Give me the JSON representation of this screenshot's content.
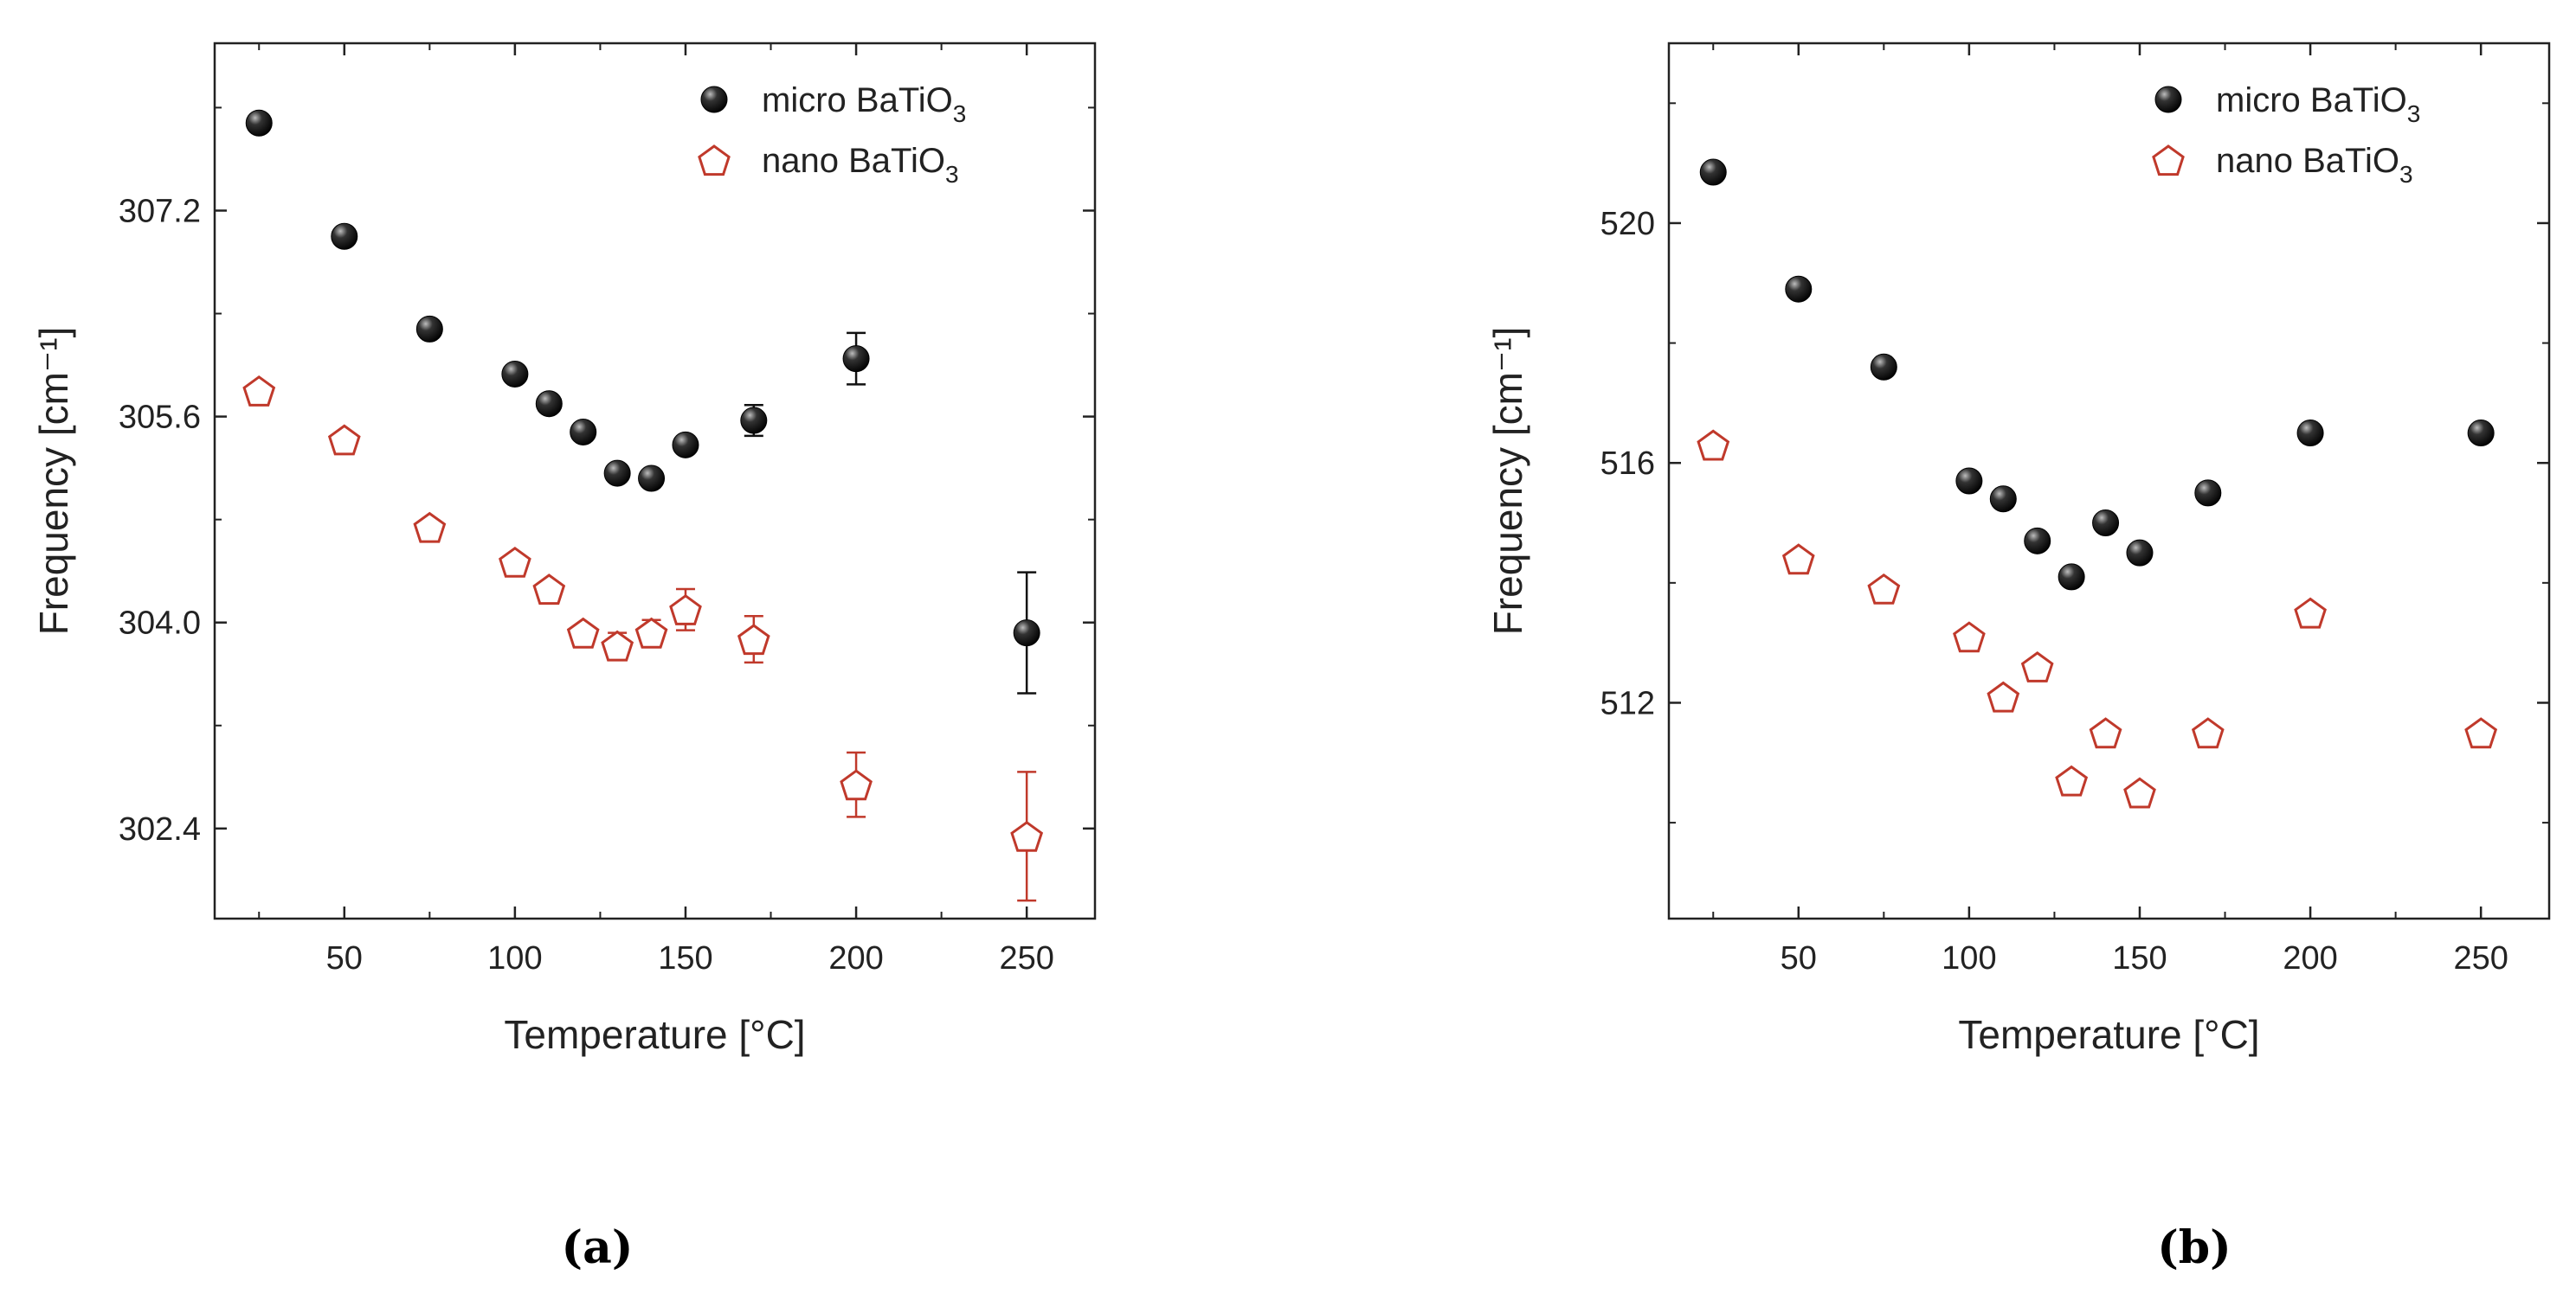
{
  "chart_data": [
    {
      "type": "scatter",
      "panel_label": "(a)",
      "xlabel": "Temperature [°C]",
      "ylabel": "Frequency [cm⁻¹]",
      "xlim": [
        12,
        270
      ],
      "ylim": [
        301.7,
        308.5
      ],
      "xticks": [
        50,
        100,
        150,
        200,
        250
      ],
      "yticks": [
        302.4,
        304.0,
        305.6,
        307.2
      ],
      "ytick_labels": [
        "302.4",
        "304.0",
        "305.6",
        "307.2"
      ],
      "legend_position": "top-right",
      "series": [
        {
          "name": "micro BaTiO3",
          "legend_label": "micro BaTiO",
          "legend_sub": "3",
          "marker": "filled-sphere",
          "color": "#111111",
          "x": [
            25,
            50,
            75,
            100,
            110,
            120,
            130,
            140,
            150,
            170,
            200,
            250
          ],
          "y": [
            307.88,
            307.0,
            306.28,
            305.93,
            305.7,
            305.48,
            305.16,
            305.12,
            305.38,
            305.57,
            306.05,
            303.92
          ],
          "err": [
            0.0,
            0.0,
            0.0,
            0.0,
            0.0,
            0.0,
            0.0,
            0.0,
            0.0,
            0.12,
            0.2,
            0.47
          ]
        },
        {
          "name": "nano BaTiO3",
          "legend_label": "nano BaTiO",
          "legend_sub": "3",
          "marker": "open-pentagon",
          "color": "#c0392b",
          "x": [
            25,
            50,
            75,
            100,
            110,
            120,
            130,
            140,
            150,
            170,
            200,
            250
          ],
          "y": [
            305.8,
            305.42,
            304.74,
            304.47,
            304.26,
            303.92,
            303.82,
            303.92,
            304.1,
            303.87,
            302.74,
            302.34
          ],
          "err": [
            0.0,
            0.0,
            0.0,
            0.0,
            0.0,
            0.0,
            0.1,
            0.1,
            0.16,
            0.18,
            0.25,
            0.5
          ]
        }
      ]
    },
    {
      "type": "scatter",
      "panel_label": "(b)",
      "xlabel": "Temperature [°C]",
      "ylabel": "Frequency [cm⁻¹]",
      "xlim": [
        12,
        270
      ],
      "ylim": [
        508.4,
        523.0
      ],
      "xticks": [
        50,
        100,
        150,
        200,
        250
      ],
      "yticks": [
        512,
        516,
        520
      ],
      "ytick_labels": [
        "512",
        "516",
        "520"
      ],
      "legend_position": "top-right",
      "series": [
        {
          "name": "micro BaTiO3",
          "legend_label": "micro BaTiO",
          "legend_sub": "3",
          "marker": "filled-sphere",
          "color": "#111111",
          "x": [
            25,
            50,
            75,
            100,
            110,
            120,
            130,
            140,
            150,
            170,
            200,
            250
          ],
          "y": [
            520.85,
            518.9,
            517.6,
            515.7,
            515.4,
            514.7,
            514.1,
            515.0,
            514.5,
            515.5,
            516.5,
            516.5
          ],
          "err": [
            0,
            0,
            0,
            0,
            0,
            0,
            0,
            0,
            0,
            0,
            0,
            0
          ]
        },
        {
          "name": "nano BaTiO3",
          "legend_label": "nano BaTiO",
          "legend_sub": "3",
          "marker": "open-pentagon",
          "color": "#c0392b",
          "x": [
            25,
            50,
            75,
            100,
            110,
            120,
            130,
            140,
            150,
            170,
            200,
            250
          ],
          "y": [
            516.3,
            514.4,
            513.9,
            513.1,
            512.1,
            512.6,
            510.7,
            511.5,
            510.5,
            511.5,
            513.5,
            511.5
          ],
          "err": [
            0,
            0,
            0,
            0,
            0,
            0,
            0,
            0,
            0,
            0,
            0,
            0
          ]
        }
      ]
    }
  ]
}
